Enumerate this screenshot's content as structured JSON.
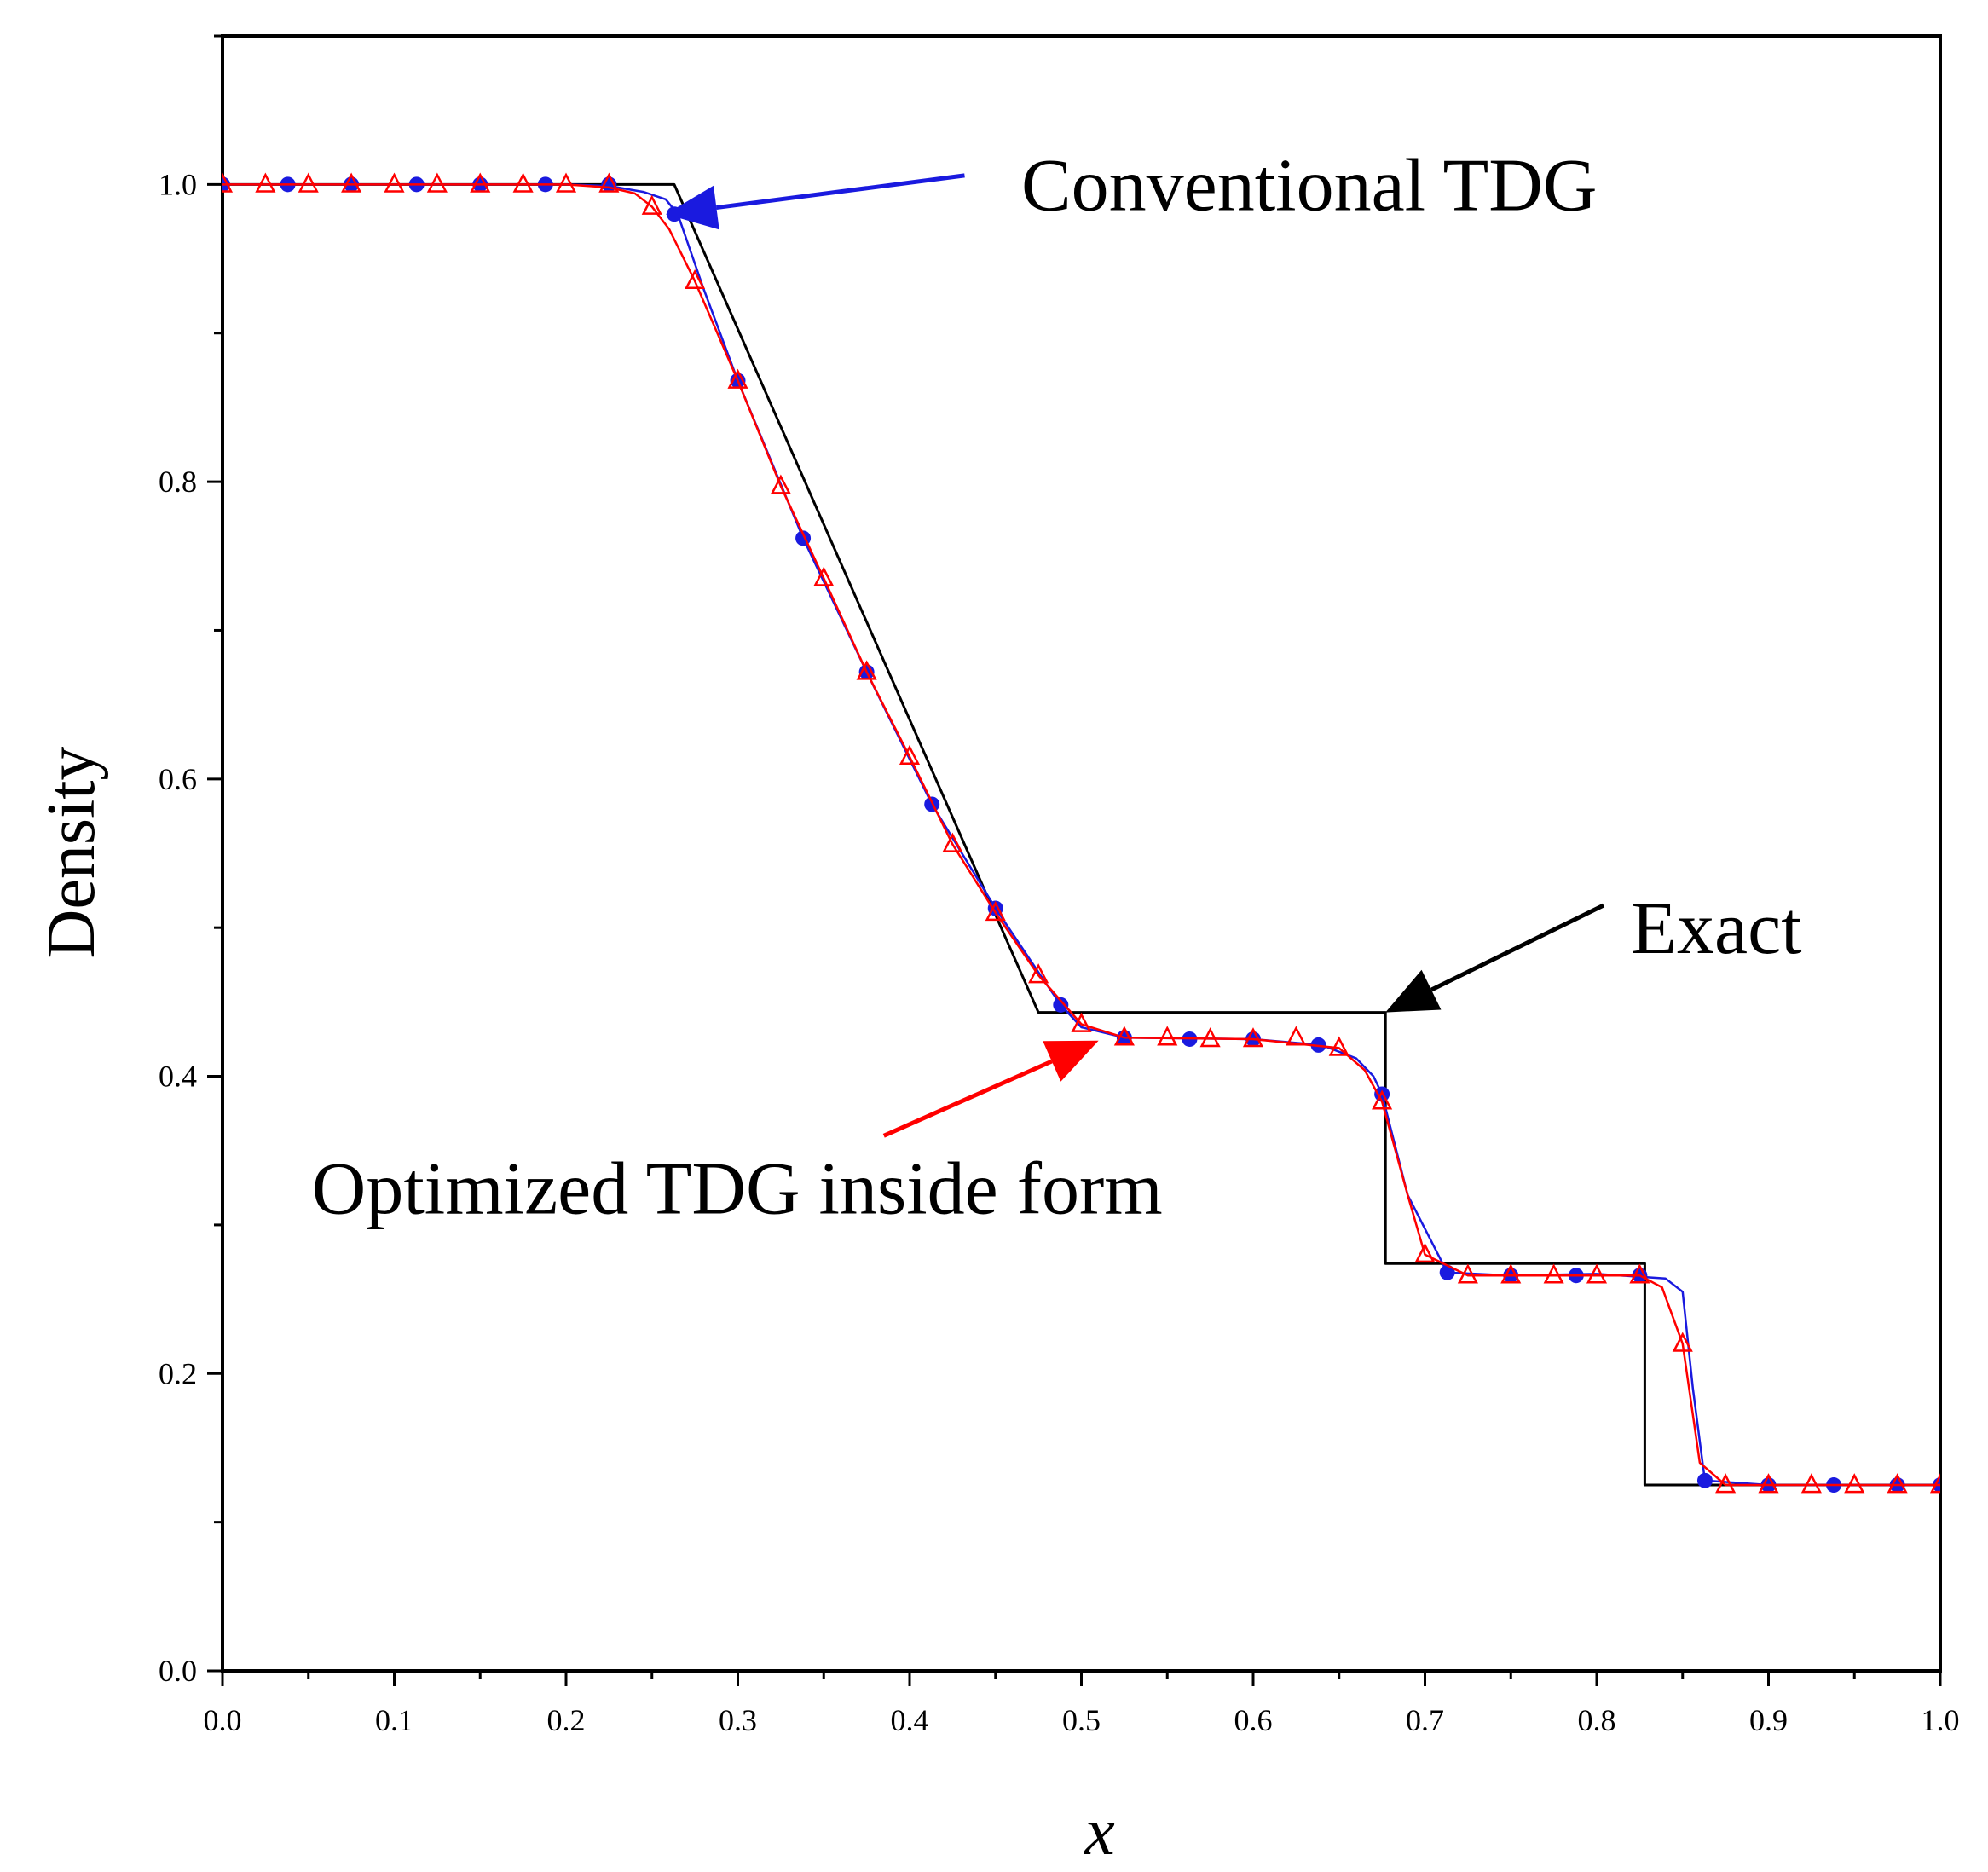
{
  "chart_data": {
    "type": "line",
    "title": "",
    "xlabel": "x",
    "ylabel": "Density",
    "xlim": [
      0.0,
      1.0
    ],
    "ylim": [
      0.0,
      1.1
    ],
    "grid": false,
    "x_ticks": [
      "0.0",
      "0.1",
      "0.2",
      "0.3",
      "0.4",
      "0.5",
      "0.6",
      "0.7",
      "0.8",
      "0.9",
      "1.0"
    ],
    "y_ticks": [
      "0.0",
      "0.2",
      "0.4",
      "0.6",
      "0.8",
      "1.0"
    ],
    "colors": {
      "exact": "#000000",
      "conventional": "#1a1adf",
      "optimized": "#ff0000"
    },
    "series": [
      {
        "name": "Exact",
        "color": "#000000",
        "marker": "none",
        "x": [
          0.0,
          0.263,
          0.475,
          0.677,
          0.677,
          0.828,
          0.828,
          1.0
        ],
        "y": [
          1.0,
          1.0,
          0.443,
          0.443,
          0.274,
          0.274,
          0.125,
          0.125
        ]
      },
      {
        "name": "Conventional TDG",
        "color": "#1a1adf",
        "marker": "circle",
        "x": [
          0.0,
          0.2,
          0.225,
          0.245,
          0.258,
          0.265,
          0.28,
          0.3,
          0.338,
          0.375,
          0.413,
          0.45,
          0.475,
          0.488,
          0.5,
          0.525,
          0.6,
          0.64,
          0.66,
          0.67,
          0.675,
          0.69,
          0.713,
          0.75,
          0.8,
          0.84,
          0.85,
          0.856,
          0.863,
          0.9,
          1.0
        ],
        "y": [
          1.0,
          1.0,
          0.999,
          0.995,
          0.99,
          0.98,
          0.93,
          0.868,
          0.762,
          0.672,
          0.583,
          0.513,
          0.47,
          0.448,
          0.433,
          0.426,
          0.425,
          0.421,
          0.412,
          0.4,
          0.388,
          0.32,
          0.268,
          0.266,
          0.267,
          0.264,
          0.255,
          0.19,
          0.128,
          0.125,
          0.125
        ],
        "marker_points": {
          "x": [
            0.0,
            0.038,
            0.075,
            0.113,
            0.15,
            0.188,
            0.225,
            0.263,
            0.3,
            0.338,
            0.375,
            0.413,
            0.45,
            0.488,
            0.525,
            0.563,
            0.6,
            0.638,
            0.675,
            0.713,
            0.75,
            0.788,
            0.825,
            0.863,
            0.9,
            0.938,
            0.975,
            1.0
          ],
          "y": [
            1.0,
            1.0,
            1.0,
            1.0,
            1.0,
            1.0,
            1.0,
            0.98,
            0.868,
            0.762,
            0.672,
            0.583,
            0.513,
            0.448,
            0.426,
            0.425,
            0.425,
            0.421,
            0.388,
            0.268,
            0.266,
            0.266,
            0.266,
            0.128,
            0.125,
            0.125,
            0.125,
            0.125
          ]
        }
      },
      {
        "name": "Optimized TDG inside form",
        "color": "#ff0000",
        "marker": "triangle",
        "x": [
          0.0,
          0.2,
          0.225,
          0.24,
          0.25,
          0.26,
          0.275,
          0.3,
          0.325,
          0.35,
          0.375,
          0.4,
          0.425,
          0.45,
          0.475,
          0.5,
          0.525,
          0.6,
          0.65,
          0.665,
          0.675,
          0.69,
          0.7,
          0.725,
          0.8,
          0.825,
          0.838,
          0.85,
          0.86,
          0.875,
          1.0
        ],
        "y": [
          1.0,
          1.0,
          0.998,
          0.994,
          0.985,
          0.97,
          0.935,
          0.868,
          0.797,
          0.735,
          0.672,
          0.615,
          0.556,
          0.51,
          0.468,
          0.435,
          0.426,
          0.425,
          0.419,
          0.404,
          0.383,
          0.32,
          0.28,
          0.266,
          0.266,
          0.266,
          0.258,
          0.22,
          0.14,
          0.125,
          0.125
        ],
        "marker_points": {
          "x": [
            0.0,
            0.025,
            0.05,
            0.075,
            0.1,
            0.125,
            0.15,
            0.175,
            0.2,
            0.225,
            0.25,
            0.275,
            0.3,
            0.325,
            0.35,
            0.375,
            0.4,
            0.425,
            0.45,
            0.475,
            0.5,
            0.525,
            0.55,
            0.575,
            0.6,
            0.625,
            0.65,
            0.675,
            0.7,
            0.725,
            0.75,
            0.775,
            0.8,
            0.825,
            0.85,
            0.875,
            0.9,
            0.925,
            0.95,
            0.975,
            1.0
          ],
          "y": [
            1.0,
            1.0,
            1.0,
            1.0,
            1.0,
            1.0,
            1.0,
            1.0,
            1.0,
            1.0,
            0.985,
            0.935,
            0.868,
            0.797,
            0.735,
            0.672,
            0.615,
            0.556,
            0.51,
            0.468,
            0.435,
            0.426,
            0.426,
            0.425,
            0.425,
            0.426,
            0.419,
            0.383,
            0.28,
            0.266,
            0.266,
            0.266,
            0.266,
            0.266,
            0.22,
            0.125,
            0.125,
            0.125,
            0.125,
            0.125,
            0.125
          ]
        }
      }
    ],
    "annotations": [
      {
        "text": "Conventional TDG",
        "color": "#1a1adf",
        "text_at": [
          0.465,
          1.0
        ],
        "arrow_from": [
          0.432,
          1.006
        ],
        "arrow_to": [
          0.258,
          0.98
        ]
      },
      {
        "text": "Exact",
        "color": "#000000",
        "text_at": [
          0.82,
          0.5
        ],
        "arrow_from": [
          0.804,
          0.515
        ],
        "arrow_to": [
          0.677,
          0.443
        ]
      },
      {
        "text": "Optimized TDG inside form",
        "color": "#ff0000",
        "text_at": [
          0.052,
          0.325
        ],
        "arrow_from": [
          0.385,
          0.36
        ],
        "arrow_to": [
          0.51,
          0.424
        ]
      }
    ]
  }
}
